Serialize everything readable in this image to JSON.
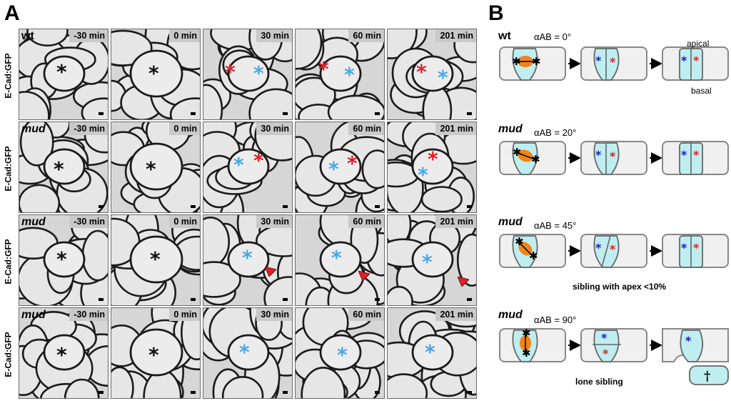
{
  "panels": {
    "a": "A",
    "b": "B"
  },
  "row_label": "E-Cad:GFP",
  "rows": [
    {
      "genotype": "wt",
      "italic": false
    },
    {
      "genotype": "mud",
      "italic": true
    },
    {
      "genotype": "mud",
      "italic": true
    },
    {
      "genotype": "mud",
      "italic": true
    }
  ],
  "times": [
    "-30 min",
    "0 min",
    "30 min",
    "60 min",
    "201 min"
  ],
  "star": "*",
  "colors": {
    "red": "#e0202a",
    "blue": "#4aa8e6",
    "cell_fill": "#bfeef0",
    "nucleus": "#f08418"
  },
  "diagram": {
    "apical": "apical",
    "basal": "basal",
    "rows": [
      {
        "genotype": "wt",
        "angle": "αAB = 0°",
        "note": ""
      },
      {
        "genotype": "mud",
        "angle": "αAB = 20°",
        "note": ""
      },
      {
        "genotype": "mud",
        "angle": "αAB = 45°",
        "note": "sibling with apex <10%"
      },
      {
        "genotype": "mud",
        "angle": "αAB = 90°",
        "note": "lone sibling"
      }
    ],
    "dagger": "†"
  }
}
